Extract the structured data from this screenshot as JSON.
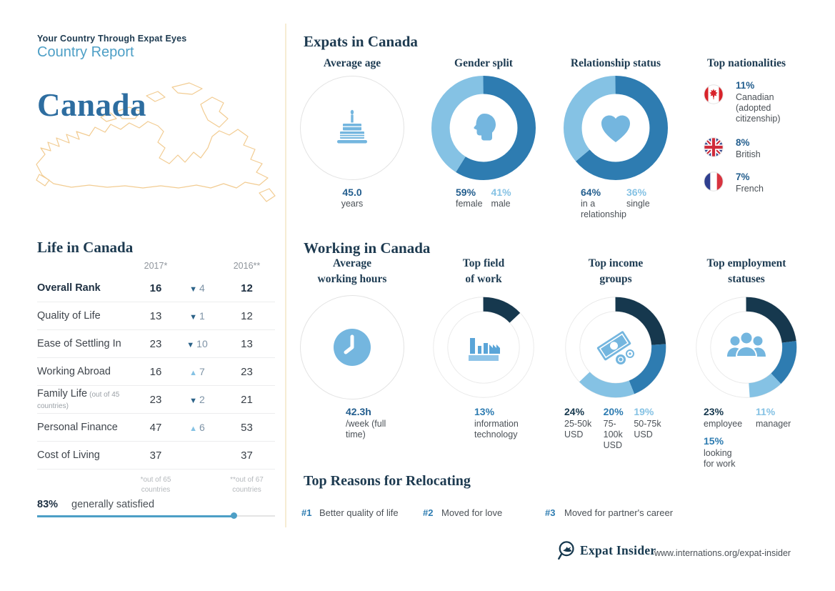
{
  "header": {
    "eyebrow": "Your Country Through Expat Eyes",
    "report_type": "Country Report",
    "country": "Canada"
  },
  "life": {
    "title": "Life in Canada",
    "col_2017": "2017*",
    "col_2016": "2016**",
    "rows": [
      {
        "label": "Overall Rank",
        "note": "",
        "v2017": "16",
        "arrow": "down",
        "change": "4",
        "v2016": "12"
      },
      {
        "label": "Quality of Life",
        "note": "",
        "v2017": "13",
        "arrow": "down",
        "change": "1",
        "v2016": "12"
      },
      {
        "label": "Ease of Settling In",
        "note": "",
        "v2017": "23",
        "arrow": "down",
        "change": "10",
        "v2016": "13"
      },
      {
        "label": "Working Abroad",
        "note": "",
        "v2017": "16",
        "arrow": "up",
        "change": "7",
        "v2016": "23"
      },
      {
        "label": "Family Life",
        "note": "(out of 45 countries)",
        "v2017": "23",
        "arrow": "down",
        "change": "2",
        "v2016": "21"
      },
      {
        "label": "Personal Finance",
        "note": "",
        "v2017": "47",
        "arrow": "up",
        "change": "6",
        "v2016": "53"
      },
      {
        "label": "Cost of Living",
        "note": "",
        "v2017": "37",
        "arrow": "none",
        "change": "",
        "v2016": "37"
      }
    ],
    "footnote_2017": "*out of 65 countries",
    "footnote_2016": "**out of 67 countries",
    "satisfaction_pct": "83%",
    "satisfaction_label": "generally satisfied",
    "satisfaction_value": 83
  },
  "expats": {
    "title": "Expats in Canada",
    "average_age": {
      "title": "Average age",
      "value": "45.0",
      "unit": "years"
    },
    "gender": {
      "title": "Gender split",
      "segments": [
        {
          "pct": "59%",
          "label": "female",
          "value": 59,
          "color": "#2e7cb1"
        },
        {
          "pct": "41%",
          "label": "male",
          "value": 41,
          "color": "#85c2e4"
        }
      ]
    },
    "relationship": {
      "title": "Relationship status",
      "segments": [
        {
          "pct": "64%",
          "label": "in a relationship",
          "label_line1": "in a",
          "label_line2": "relationship",
          "value": 64,
          "color": "#2e7cb1"
        },
        {
          "pct": "36%",
          "label": "single",
          "label_line1": "single",
          "label_line2": "",
          "value": 36,
          "color": "#85c2e4"
        }
      ]
    },
    "nationalities": {
      "title": "Top nationalities",
      "items": [
        {
          "flag": "canada",
          "pct": "11%",
          "line1": "Canadian",
          "line2": "(adopted",
          "line3": "citizenship)"
        },
        {
          "flag": "uk",
          "pct": "8%",
          "line1": "British",
          "line2": "",
          "line3": ""
        },
        {
          "flag": "france",
          "pct": "7%",
          "line1": "French",
          "line2": "",
          "line3": ""
        }
      ]
    }
  },
  "working": {
    "title": "Working in Canada",
    "hours": {
      "title_line1": "Average",
      "title_line2": "working hours",
      "value": "42.3h",
      "unit": "/week (full time)"
    },
    "field": {
      "title_line1": "Top field",
      "title_line2": "of work",
      "pct": "13%",
      "label_line1": "information",
      "label_line2": "technology",
      "segments": [
        {
          "value": 13,
          "color": "#16384e",
          "label": "information technology"
        }
      ]
    },
    "income": {
      "title_line1": "Top income",
      "title_line2": "groups",
      "segments": [
        {
          "value": 24,
          "color": "#16384e",
          "label": "25-50k USD"
        },
        {
          "value": 20,
          "color": "#2e7cb1",
          "label": "75-100k USD"
        },
        {
          "value": 19,
          "color": "#85c2e4",
          "label": "50-75k USD"
        }
      ],
      "labels": [
        {
          "pct": "24%",
          "l1": "25-50k",
          "l2": "USD",
          "l3": ""
        },
        {
          "pct": "20%",
          "l1": "75-",
          "l2": "100k",
          "l3": "USD"
        },
        {
          "pct": "19%",
          "l1": "50-75k",
          "l2": "USD",
          "l3": ""
        }
      ]
    },
    "employment": {
      "title_line1": "Top employment",
      "title_line2": "statuses",
      "segments": [
        {
          "value": 23,
          "color": "#16384e",
          "label": "employee"
        },
        {
          "value": 15,
          "color": "#2e7cb1",
          "label": "looking for work"
        },
        {
          "value": 11,
          "color": "#85c2e4",
          "label": "manager"
        }
      ],
      "labels": [
        {
          "pct": "23%",
          "l1": "employee",
          "l2": ""
        },
        {
          "pct": "15%",
          "l1": "looking",
          "l2": "for work"
        },
        {
          "pct": "11%",
          "l1": "manager",
          "l2": ""
        }
      ]
    }
  },
  "reasons": {
    "title": "Top Reasons for Relocating",
    "items": [
      {
        "rank": "#1",
        "label": "Better quality of life"
      },
      {
        "rank": "#2",
        "label": "Moved for love"
      },
      {
        "rank": "#3",
        "label": "Moved for partner's career"
      }
    ]
  },
  "footer": {
    "brand": "Expat Insider",
    "url": "www.internations.org/expat-insider"
  },
  "colors": {
    "navy": "#16384e",
    "medium_blue": "#2e7cb1",
    "light_blue": "#85c2e4",
    "icon_blue": "#74b6df",
    "accent_blue": "#4d9fc6",
    "map_tan": "#f2cc92"
  },
  "chart_data": [
    {
      "type": "pie",
      "title": "Gender split",
      "labels": [
        "female",
        "male"
      ],
      "values": [
        59,
        41
      ],
      "colors": [
        "#2e7cb1",
        "#85c2e4"
      ],
      "center_icon": "head"
    },
    {
      "type": "pie",
      "title": "Relationship status",
      "labels": [
        "in a relationship",
        "single"
      ],
      "values": [
        64,
        36
      ],
      "colors": [
        "#2e7cb1",
        "#85c2e4"
      ],
      "center_icon": "heart"
    },
    {
      "type": "pie",
      "title": "Top field of work",
      "labels": [
        "information technology",
        "unspecified"
      ],
      "values": [
        13,
        87
      ],
      "colors": [
        "#16384e",
        "none"
      ],
      "center_icon": "factory"
    },
    {
      "type": "pie",
      "title": "Top income groups",
      "labels": [
        "25-50k USD",
        "75-100k USD",
        "50-75k USD",
        "unspecified"
      ],
      "values": [
        24,
        20,
        19,
        37
      ],
      "colors": [
        "#16384e",
        "#2e7cb1",
        "#85c2e4",
        "none"
      ],
      "center_icon": "money"
    },
    {
      "type": "pie",
      "title": "Top employment statuses",
      "labels": [
        "employee",
        "looking for work",
        "manager",
        "unspecified"
      ],
      "values": [
        23,
        15,
        11,
        51
      ],
      "colors": [
        "#16384e",
        "#2e7cb1",
        "#85c2e4",
        "none"
      ],
      "center_icon": "people"
    },
    {
      "type": "table",
      "title": "Life in Canada",
      "columns": [
        "",
        "2017*",
        "change",
        "2016**"
      ],
      "rows": [
        [
          "Overall Rank",
          "16",
          "-4",
          "12"
        ],
        [
          "Quality of Life",
          "13",
          "-1",
          "12"
        ],
        [
          "Ease of Settling In",
          "23",
          "-10",
          "13"
        ],
        [
          "Working Abroad",
          "16",
          "+7",
          "23"
        ],
        [
          "Family Life (out of 45 countries)",
          "23",
          "-2",
          "21"
        ],
        [
          "Personal Finance",
          "47",
          "+6",
          "53"
        ],
        [
          "Cost of Living",
          "37",
          "",
          "37"
        ]
      ],
      "footnotes": [
        "*out of 65 countries",
        "**out of 67 countries"
      ]
    },
    {
      "type": "bar",
      "title": "generally satisfied",
      "categories": [
        "generally satisfied"
      ],
      "values": [
        83
      ],
      "ylim": [
        0,
        100
      ],
      "ylabel": "%"
    }
  ]
}
